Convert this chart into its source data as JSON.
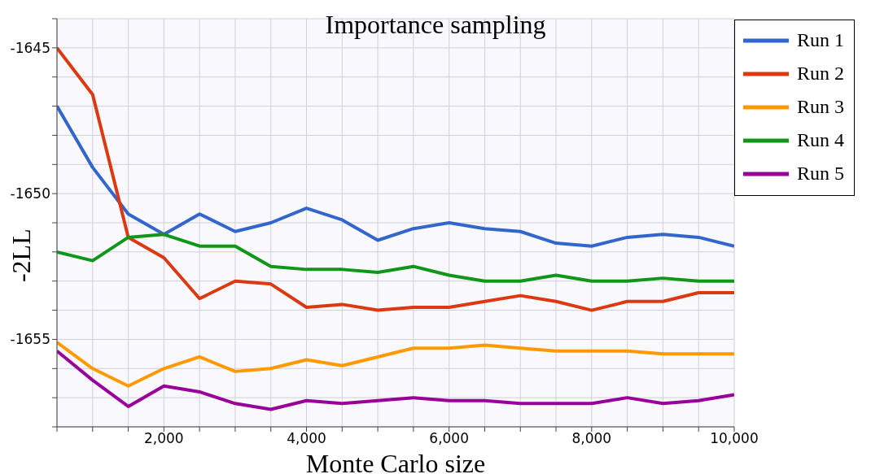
{
  "chart_data": {
    "type": "line",
    "title": "Importance sampling",
    "xlabel": "Monte Carlo size",
    "ylabel": "-2LL",
    "x": [
      500,
      1000,
      1500,
      2000,
      2500,
      3000,
      3500,
      4000,
      4500,
      5000,
      5500,
      6000,
      6500,
      7000,
      7500,
      8000,
      8500,
      9000,
      9500,
      10000
    ],
    "xlim": [
      500,
      10000
    ],
    "xticks": [
      {
        "value": 500,
        "label": null
      },
      {
        "value": 1000,
        "label": null
      },
      {
        "value": 1500,
        "label": null
      },
      {
        "value": 2000,
        "label": "2,000"
      },
      {
        "value": 2500,
        "label": null
      },
      {
        "value": 3000,
        "label": null
      },
      {
        "value": 3500,
        "label": null
      },
      {
        "value": 4000,
        "label": "4,000"
      },
      {
        "value": 4500,
        "label": null
      },
      {
        "value": 5000,
        "label": null
      },
      {
        "value": 5500,
        "label": null
      },
      {
        "value": 6000,
        "label": "6,000"
      },
      {
        "value": 6500,
        "label": null
      },
      {
        "value": 7000,
        "label": null
      },
      {
        "value": 7500,
        "label": null
      },
      {
        "value": 8000,
        "label": "8,000"
      },
      {
        "value": 8500,
        "label": null
      },
      {
        "value": 9000,
        "label": null
      },
      {
        "value": 9500,
        "label": null
      },
      {
        "value": 10000,
        "label": "10,000"
      }
    ],
    "ylim": [
      -1658,
      -1644
    ],
    "yticks": [
      {
        "value": -1658,
        "label": null
      },
      {
        "value": -1657,
        "label": null
      },
      {
        "value": -1656,
        "label": null
      },
      -1655,
      {
        "value": -1654,
        "label": null
      },
      {
        "value": -1653,
        "label": null
      },
      {
        "value": -1652,
        "label": null
      },
      {
        "value": -1651,
        "label": null
      },
      -1650,
      {
        "value": -1649,
        "label": null
      },
      {
        "value": -1648,
        "label": null
      },
      {
        "value": -1647,
        "label": null
      },
      {
        "value": -1646,
        "label": null
      },
      -1645,
      {
        "value": -1644,
        "label": null
      }
    ],
    "grid": true,
    "legend": "top right",
    "series": [
      {
        "name": "Run 1",
        "color": "#3366cc",
        "values": [
          -1647.0,
          -1649.1,
          -1650.7,
          -1651.4,
          -1650.7,
          -1651.3,
          -1651.0,
          -1650.5,
          -1650.9,
          -1651.6,
          -1651.2,
          -1651.0,
          -1651.2,
          -1651.3,
          -1651.7,
          -1651.8,
          -1651.5,
          -1651.4,
          -1651.5,
          -1651.8
        ]
      },
      {
        "name": "Run 2",
        "color": "#dc3912",
        "values": [
          -1645.0,
          -1646.6,
          -1651.5,
          -1652.2,
          -1653.6,
          -1653.0,
          -1653.1,
          -1653.9,
          -1653.8,
          -1654.0,
          -1653.9,
          -1653.9,
          -1653.7,
          -1653.5,
          -1653.7,
          -1654.0,
          -1653.7,
          -1653.7,
          -1653.4,
          -1653.4
        ]
      },
      {
        "name": "Run 3",
        "color": "#ff9900",
        "values": [
          -1655.1,
          -1656.0,
          -1656.6,
          -1656.0,
          -1655.6,
          -1656.1,
          -1656.0,
          -1655.7,
          -1655.9,
          -1655.6,
          -1655.3,
          -1655.3,
          -1655.2,
          -1655.3,
          -1655.4,
          -1655.4,
          -1655.4,
          -1655.5,
          -1655.5,
          -1655.5
        ]
      },
      {
        "name": "Run 4",
        "color": "#109618",
        "values": [
          -1652.0,
          -1652.3,
          -1651.5,
          -1651.4,
          -1651.8,
          -1651.8,
          -1652.5,
          -1652.6,
          -1652.6,
          -1652.7,
          -1652.5,
          -1652.8,
          -1653.0,
          -1653.0,
          -1652.8,
          -1653.0,
          -1653.0,
          -1652.9,
          -1653.0,
          -1653.0
        ]
      },
      {
        "name": "Run 5",
        "color": "#990099",
        "values": [
          -1655.4,
          -1656.4,
          -1657.3,
          -1656.6,
          -1656.8,
          -1657.2,
          -1657.4,
          -1657.1,
          -1657.2,
          -1657.1,
          -1657.0,
          -1657.1,
          -1657.1,
          -1657.2,
          -1657.2,
          -1657.2,
          -1657.0,
          -1657.2,
          -1657.1,
          -1656.9
        ]
      }
    ]
  }
}
